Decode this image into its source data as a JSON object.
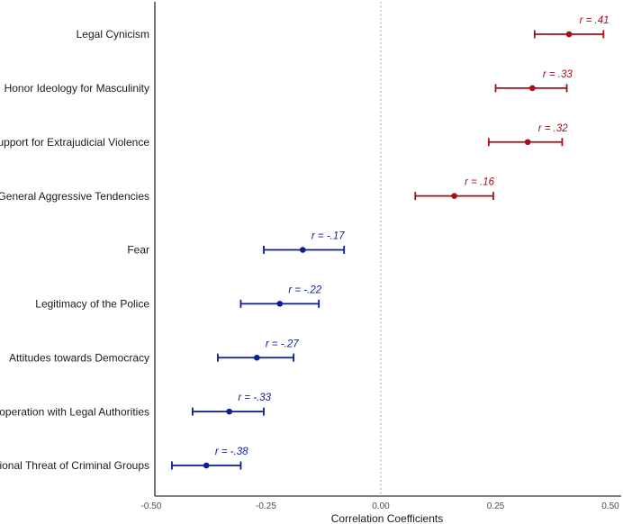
{
  "chart_data": {
    "type": "forest",
    "title": "",
    "xlabel": "Correlation Coefficients",
    "ylabel": "",
    "xlim": [
      -0.5,
      0.5
    ],
    "xticks": [
      -0.5,
      -0.25,
      0.0,
      0.25,
      0.5
    ],
    "xtick_labels": [
      "-0.50",
      "-0.25",
      "0.00",
      "0.25",
      "0.50"
    ],
    "reference_line": 0,
    "colors": {
      "positive": "#a50f15",
      "negative": "#0c1c9c",
      "reference": "#aaaaaa",
      "axis": "#000000"
    },
    "items": [
      {
        "label": "Legal Cynicism",
        "r": 0.41,
        "lower": 0.335,
        "upper": 0.485,
        "annotation": "r = .41",
        "sign": "positive"
      },
      {
        "label": "Honor Ideology for Masculinity",
        "r": 0.33,
        "lower": 0.25,
        "upper": 0.405,
        "annotation": "r = .33",
        "sign": "positive"
      },
      {
        "label": "Support for Extrajudicial Violence",
        "r": 0.32,
        "lower": 0.235,
        "upper": 0.395,
        "annotation": "r = .32",
        "sign": "positive"
      },
      {
        "label": "General Aggressive Tendencies",
        "r": 0.16,
        "lower": 0.075,
        "upper": 0.245,
        "annotation": "r = .16",
        "sign": "positive"
      },
      {
        "label": "Fear",
        "r": -0.17,
        "lower": -0.255,
        "upper": -0.08,
        "annotation": "r = -.17",
        "sign": "negative"
      },
      {
        "label": "Legitimacy of the Police",
        "r": -0.22,
        "lower": -0.305,
        "upper": -0.135,
        "annotation": "r = -.22",
        "sign": "negative"
      },
      {
        "label": "Attitudes towards Democracy",
        "r": -0.27,
        "lower": -0.355,
        "upper": -0.19,
        "annotation": "r = -.27",
        "sign": "negative"
      },
      {
        "label": "Cooperation with Legal Authorities",
        "r": -0.33,
        "lower": -0.41,
        "upper": -0.255,
        "annotation": "r = -.33",
        "sign": "negative"
      },
      {
        "label": "National Threat of Criminal Groups",
        "r": -0.38,
        "lower": -0.455,
        "upper": -0.305,
        "annotation": "r = -.38",
        "sign": "negative"
      }
    ]
  }
}
